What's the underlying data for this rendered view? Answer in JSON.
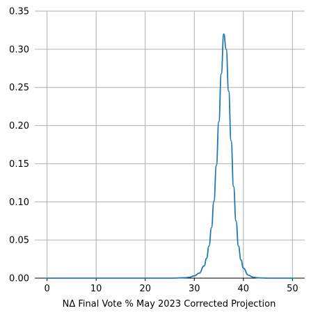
{
  "chart_data": {
    "type": "line",
    "title": "",
    "xlabel": "NΔ Final Vote % May 2023 Corrected Projection",
    "ylabel": "",
    "xlim": [
      -2.5,
      52.5
    ],
    "ylim": [
      0,
      0.35
    ],
    "x_ticks": [
      0,
      10,
      20,
      30,
      40,
      50
    ],
    "y_ticks": [
      0.0,
      0.05,
      0.1,
      0.15,
      0.2,
      0.25,
      0.3,
      0.35
    ],
    "x_tick_labels": [
      "0",
      "10",
      "20",
      "30",
      "40",
      "50"
    ],
    "y_tick_labels": [
      "0.00",
      "0.05",
      "0.10",
      "0.15",
      "0.20",
      "0.25",
      "0.30",
      "0.35"
    ],
    "grid": true,
    "legend": "none",
    "series": [
      {
        "color": "#1f77b4",
        "x": [
          0,
          5,
          10,
          15,
          20,
          25,
          28,
          29,
          30,
          31,
          32,
          32.5,
          33,
          33.5,
          34,
          34.5,
          35,
          35.5,
          36,
          36.5,
          37,
          37.5,
          38,
          38.5,
          39,
          39.5,
          40,
          41,
          42,
          43,
          45,
          50
        ],
        "y": [
          0,
          0,
          0,
          0,
          0,
          0,
          0.0005,
          0.0012,
          0.003,
          0.0065,
          0.016,
          0.026,
          0.042,
          0.066,
          0.101,
          0.148,
          0.205,
          0.268,
          0.32,
          0.3,
          0.245,
          0.18,
          0.12,
          0.075,
          0.042,
          0.024,
          0.013,
          0.004,
          0.0012,
          0.0004,
          0,
          0
        ]
      }
    ]
  }
}
